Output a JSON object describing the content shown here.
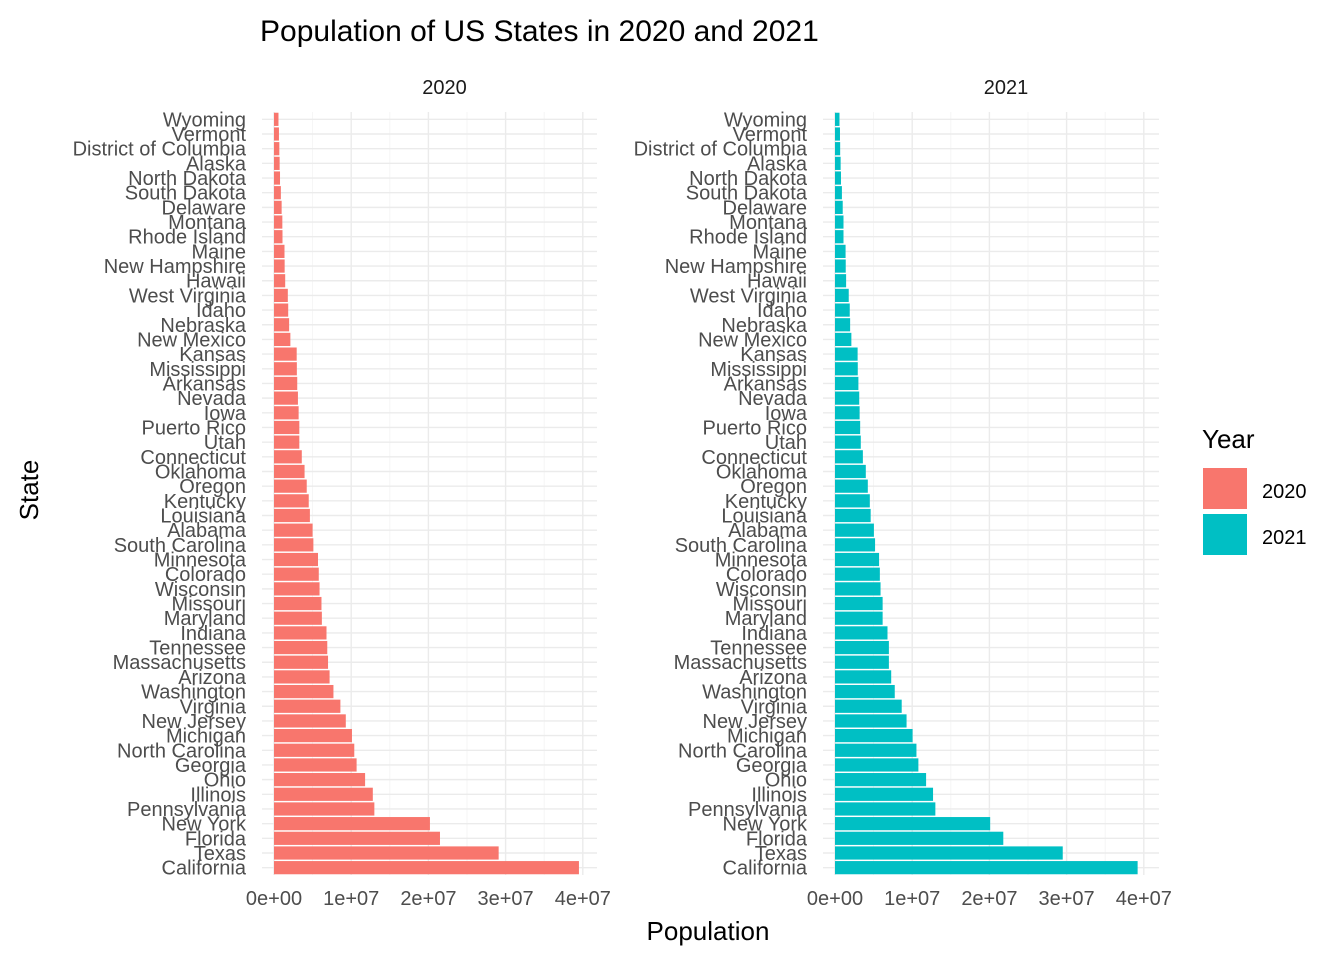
{
  "chart_data": {
    "type": "bar",
    "orientation": "horizontal",
    "title": "Population of US States in 2020 and 2021",
    "xlabel": "Population",
    "ylabel": "State",
    "xlim": [
      0,
      40000000
    ],
    "x_ticks": [
      "0e+00",
      "1e+07",
      "2e+07",
      "3e+07",
      "4e+07"
    ],
    "grid": true,
    "legend": {
      "title": "Year",
      "position": "right"
    },
    "categories": [
      "California",
      "Texas",
      "Florida",
      "New York",
      "Pennsylvania",
      "Illinois",
      "Ohio",
      "Georgia",
      "North Carolina",
      "Michigan",
      "New Jersey",
      "Virginia",
      "Washington",
      "Arizona",
      "Massachusetts",
      "Tennessee",
      "Indiana",
      "Maryland",
      "Missouri",
      "Wisconsin",
      "Colorado",
      "Minnesota",
      "South Carolina",
      "Alabama",
      "Louisiana",
      "Kentucky",
      "Oregon",
      "Oklahoma",
      "Connecticut",
      "Utah",
      "Puerto Rico",
      "Iowa",
      "Nevada",
      "Arkansas",
      "Mississippi",
      "Kansas",
      "New Mexico",
      "Nebraska",
      "Idaho",
      "West Virginia",
      "Hawaii",
      "New Hampshire",
      "Maine",
      "Rhode Island",
      "Montana",
      "Delaware",
      "South Dakota",
      "North Dakota",
      "Alaska",
      "District of Columbia",
      "Vermont",
      "Wyoming"
    ],
    "series": [
      {
        "name": "2020",
        "color": "#F8766D",
        "values": [
          39500000,
          29100000,
          21500000,
          20200000,
          13000000,
          12800000,
          11800000,
          10700000,
          10400000,
          10100000,
          9300000,
          8600000,
          7700000,
          7200000,
          7000000,
          6900000,
          6800000,
          6200000,
          6150000,
          5900000,
          5800000,
          5700000,
          5100000,
          5000000,
          4650000,
          4500000,
          4240000,
          3960000,
          3600000,
          3280000,
          3280000,
          3190000,
          3100000,
          3010000,
          2960000,
          2940000,
          2120000,
          1960000,
          1840000,
          1790000,
          1450000,
          1380000,
          1360000,
          1100000,
          1080000,
          990000,
          890000,
          780000,
          730000,
          690000,
          640000,
          580000
        ]
      },
      {
        "name": "2021",
        "color": "#00BFC4",
        "values": [
          39200000,
          29500000,
          21800000,
          20100000,
          13000000,
          12700000,
          11800000,
          10800000,
          10550000,
          10050000,
          9270000,
          8640000,
          7740000,
          7280000,
          6980000,
          6980000,
          6800000,
          6170000,
          6170000,
          5900000,
          5810000,
          5710000,
          5190000,
          5040000,
          4620000,
          4510000,
          4250000,
          3990000,
          3610000,
          3340000,
          3260000,
          3190000,
          3140000,
          3030000,
          2950000,
          2930000,
          2120000,
          1960000,
          1910000,
          1780000,
          1440000,
          1390000,
          1370000,
          1100000,
          1100000,
          1000000,
          895000,
          775000,
          730000,
          670000,
          645000,
          580000
        ]
      }
    ]
  }
}
